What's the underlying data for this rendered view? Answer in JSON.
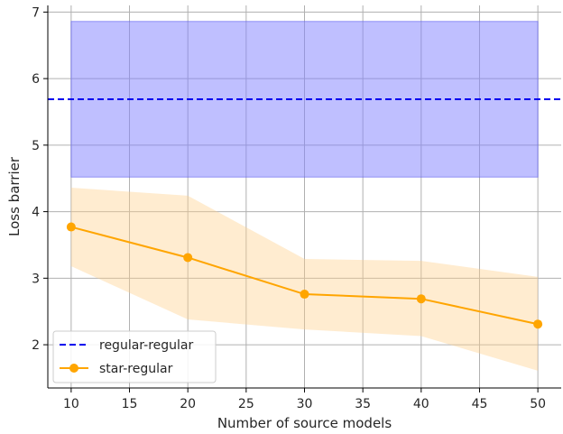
{
  "chart_data": {
    "type": "line",
    "xlabel": "Number of source models",
    "ylabel": "Loss barrier",
    "xlim": [
      8,
      52
    ],
    "ylim": [
      1.35,
      7.1
    ],
    "xticks": [
      10,
      15,
      20,
      25,
      30,
      35,
      40,
      45,
      50
    ],
    "yticks": [
      2,
      3,
      4,
      5,
      6,
      7
    ],
    "grid": true,
    "legend_position": "lower-left",
    "series": [
      {
        "name": "regular-regular",
        "style": "dashed",
        "color": "#0000ee",
        "band_color": "#8080ff",
        "x": [
          10,
          50
        ],
        "y": [
          5.69,
          5.69
        ],
        "band_lower": [
          4.52,
          4.52
        ],
        "band_upper": [
          6.86,
          6.86
        ]
      },
      {
        "name": "star-regular",
        "style": "solid-markers",
        "color": "#ffa500",
        "band_color": "#ffd08a",
        "x": [
          10,
          20,
          30,
          40,
          50
        ],
        "y": [
          3.77,
          3.31,
          2.76,
          2.69,
          2.31
        ],
        "band_lower": [
          3.18,
          2.38,
          2.23,
          2.13,
          1.61
        ],
        "band_upper": [
          4.36,
          4.24,
          3.29,
          3.26,
          3.02
        ]
      }
    ]
  }
}
